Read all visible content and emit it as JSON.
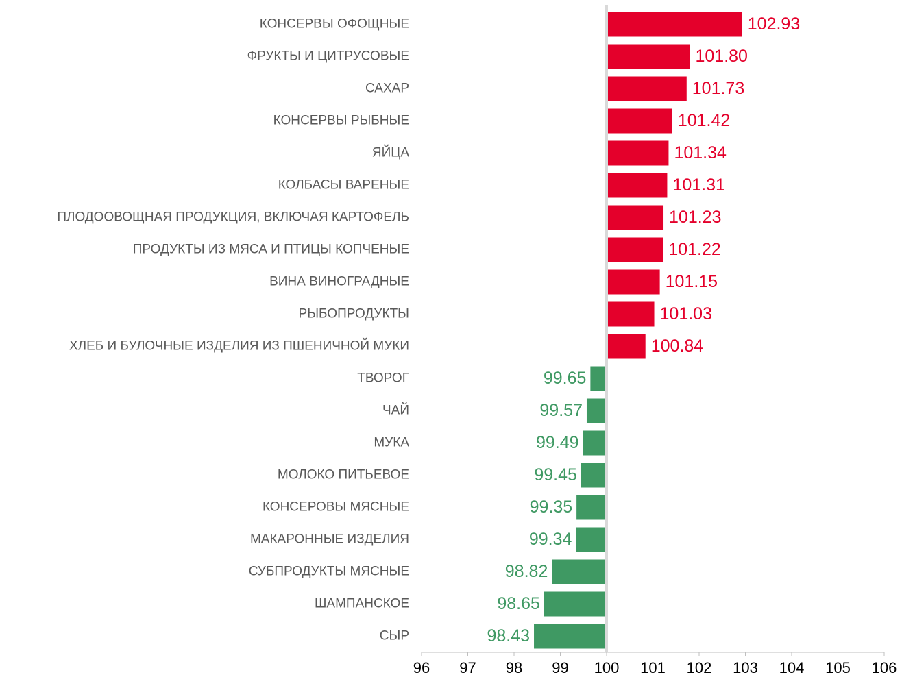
{
  "chart_data": {
    "type": "barh",
    "categories": [
      "КОНСЕРВЫ ОФОЩНЫЕ",
      "ФРУКТЫ И ЦИТРУСОВЫЕ",
      "САХАР",
      "КОНСЕРВЫ РЫБНЫЕ",
      "ЯЙЦА",
      "КОЛБАСЫ ВАРЕНЫЕ",
      "ПЛОДООВОЩНАЯ ПРОДУКЦИЯ, ВКЛЮЧАЯ КАРТОФЕЛЬ",
      "ПРОДУКТЫ ИЗ МЯСА И ПТИЦЫ КОПЧЕНЫЕ",
      "ВИНА ВИНОГРАДНЫЕ",
      "РЫБОПРОДУКТЫ",
      "ХЛЕБ И БУЛОЧНЫЕ ИЗДЕЛИЯ ИЗ ПШЕНИЧНОЙ МУКИ",
      "ТВОРОГ",
      "ЧАЙ",
      "МУКА",
      "МОЛОКО ПИТЬЕВОЕ",
      "КОНСЕРОВЫ МЯСНЫЕ",
      "МАКАРОННЫЕ ИЗДЕЛИЯ",
      "СУБПРОДУКТЫ МЯСНЫЕ",
      "ШАМПАНСКОЕ",
      "СЫР"
    ],
    "values": [
      102.93,
      101.8,
      101.73,
      101.42,
      101.34,
      101.31,
      101.23,
      101.22,
      101.15,
      101.03,
      100.84,
      99.65,
      99.57,
      99.49,
      99.45,
      99.35,
      99.34,
      98.82,
      98.65,
      98.43
    ],
    "value_labels": [
      "102.93",
      "101.80",
      "101.73",
      "101.42",
      "101.34",
      "101.31",
      "101.23",
      "101.22",
      "101.15",
      "101.03",
      "100.84",
      "99.65",
      "99.57",
      "99.49",
      "99.45",
      "99.35",
      "99.34",
      "98.82",
      "98.65",
      "98.43"
    ],
    "baseline": 100,
    "color_above": "#e4002b",
    "color_below": "#3f9963",
    "xlim": [
      96,
      106
    ],
    "xticks": [
      96,
      97,
      98,
      99,
      100,
      101,
      102,
      103,
      104,
      105,
      106
    ]
  }
}
